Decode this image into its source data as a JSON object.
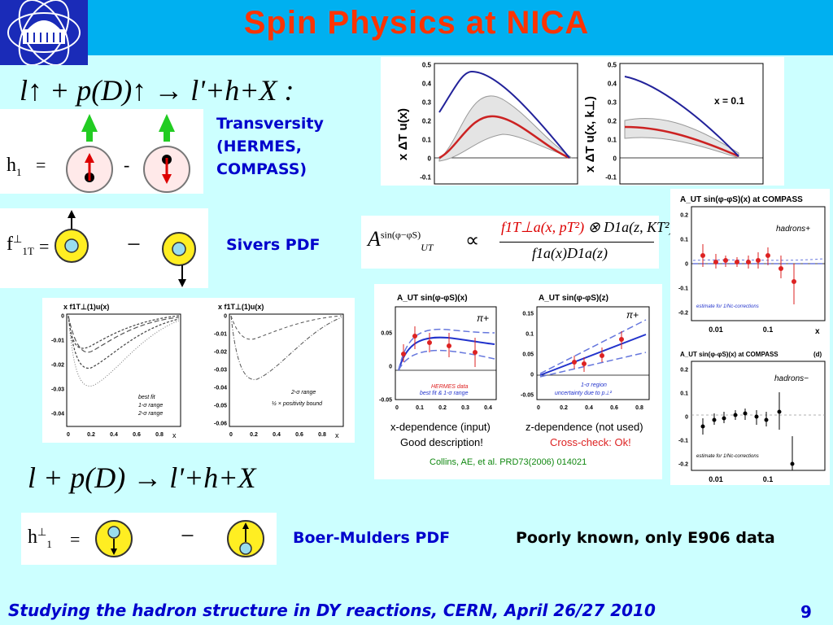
{
  "slide": {
    "title": "Spin Physics at NICA",
    "formula_polarized": "l↑ + p(D)↑ → l'+h+X :",
    "formula_unpolarized": "l + p(D) → l'+h+X",
    "footer": "Studying the hadron structure in DY reactions, CERN, April 26/27 2010",
    "page_number": "9"
  },
  "transversity": {
    "label_lines": [
      "Transversity",
      "(HERMES,",
      "COMPASS)"
    ],
    "symbol": "h",
    "symbol_sub": "1",
    "equals": "=",
    "minus": "-"
  },
  "sivers": {
    "label": "Sivers PDF",
    "symbol": "f",
    "symbol_sup": "⊥",
    "symbol_sub": "1T",
    "equals": "=",
    "minus": "−"
  },
  "boer_mulders": {
    "label": "Boer-Mulders PDF",
    "note": "Poorly known, only E906 data",
    "symbol": "h",
    "symbol_sup": "⊥",
    "symbol_sub": "1",
    "equals": "=",
    "minus": "−"
  },
  "sivers_formula": {
    "lhs": "A",
    "lhs_sup": "sin(φ−φS)",
    "lhs_sub": "UT",
    "propto": "∝",
    "numerator_red": "f1T⊥a(x, pT²)",
    "numerator_rest": "⊗ D1a(z, KT²)",
    "denominator": "f1a(x)D1a(z)"
  },
  "transversity_plots": {
    "left_ylabel": "x ΔT u(x)",
    "right_ylabel": "x ΔT u(x, k⊥)",
    "right_note": "x = 0.1",
    "yticks": [
      "0.5",
      "0.4",
      "0.3",
      "0.2",
      "0.1",
      "0",
      "-0.1"
    ]
  },
  "sivers_plots": {
    "left_title": "x f1T⊥(1)u(x)",
    "right_title": "x f1T⊥(1)u(x)",
    "left_yticks": [
      "0",
      "-0.01",
      "-0.02",
      "-0.03",
      "-0.04"
    ],
    "right_yticks": [
      "0",
      "-0.01",
      "-0.02",
      "-0.03",
      "-0.04",
      "-0.05",
      "-0.06"
    ],
    "xticks": [
      "0",
      "0.2",
      "0.4",
      "0.6",
      "0.8"
    ],
    "xunit": "x",
    "left_legend": [
      "best fit",
      "1-σ range",
      "2-σ range"
    ],
    "right_legend": [
      "2-σ range",
      "½ × positivity bound"
    ]
  },
  "hermes_plots": {
    "left_title": "A_UT sin(φ-φS)(x)",
    "right_title": "A_UT sin(φ-φS)(z)",
    "pion_label": "π+",
    "left_yticks": [
      "0.05",
      "0",
      "-0.05"
    ],
    "right_yticks": [
      "0.15",
      "0.1",
      "0.05",
      "0",
      "-0.05"
    ],
    "left_xticks": [
      "0",
      "0.1",
      "0.2",
      "0.3",
      "0.4"
    ],
    "right_xticks": [
      "0",
      "0.2",
      "0.4",
      "0.6",
      "0.8"
    ],
    "left_legend": [
      "HERMES data",
      "best fit & 1-σ range"
    ],
    "right_legend": [
      "1-σ region",
      "uncertainty due to p⊥²"
    ],
    "left_caption_1": "x-dependence (input)",
    "left_caption_2": "Good description!",
    "right_caption_1": "z-dependence (not used)",
    "right_caption_2": "Cross-check:  Ok!",
    "citation": "Collins, AE, et al. PRD73(2006) 014021"
  },
  "compass_plots": {
    "top_title": "A_UT sin(φ-φS)(x)  at COMPASS",
    "top_label": "hadrons+",
    "top_yticks": [
      "0.2",
      "0.1",
      "0",
      "-0.1",
      "-0.2"
    ],
    "bottom_title": "A_UT sin(φ-φS)(x)  at COMPASS",
    "bottom_tag": "(d)",
    "bottom_label": "hadrons−",
    "bottom_yticks": [
      "0.2",
      "0.1",
      "0",
      "-0.1",
      "-0.2"
    ],
    "xticks": [
      "0.01",
      "0.1"
    ],
    "xunit": "x",
    "estimate_note": "estimate for 1/Nc-corrections"
  }
}
